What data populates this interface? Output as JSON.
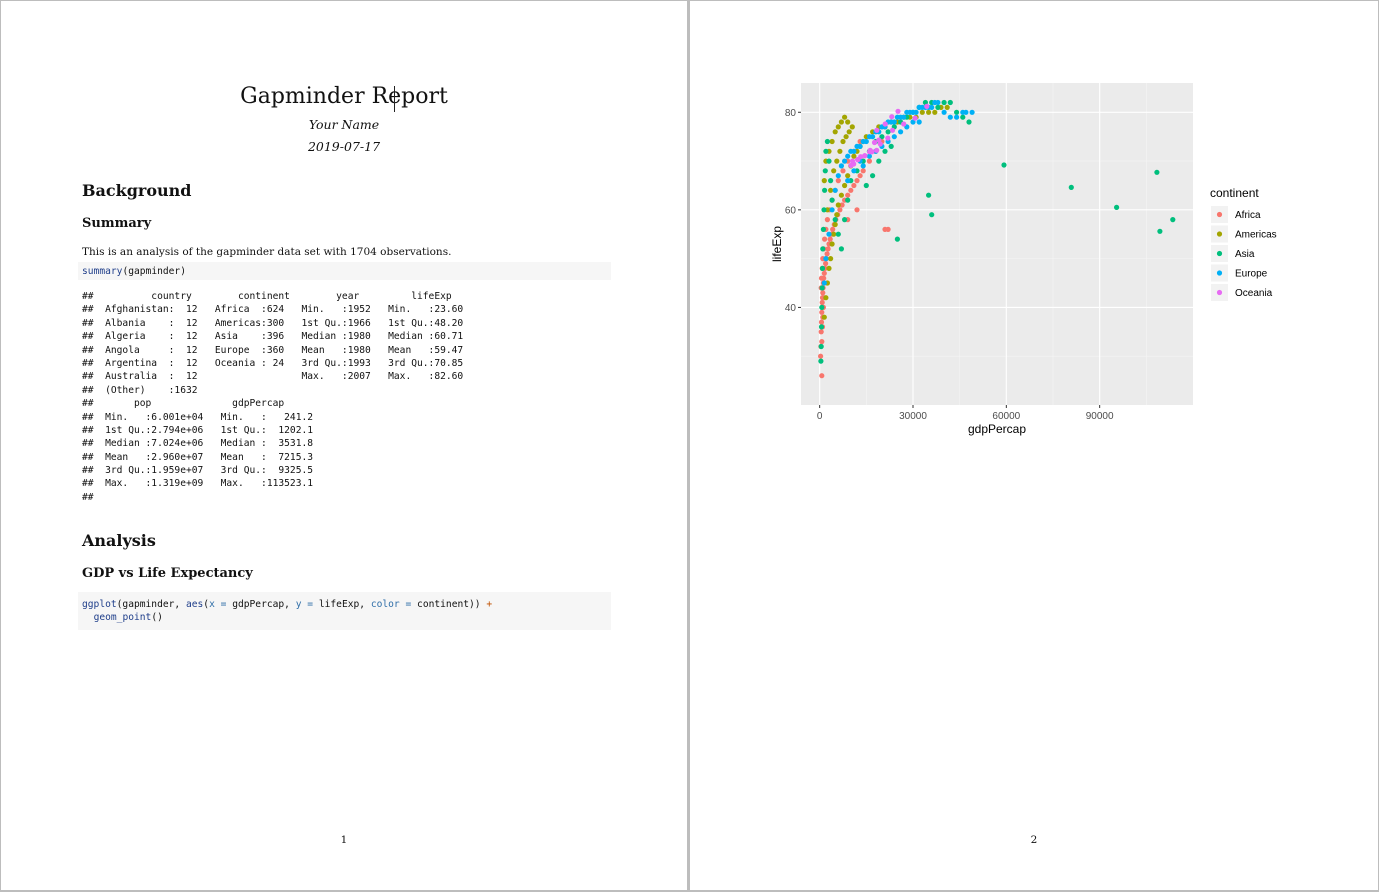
{
  "page1": {
    "title": "Gapminder Report",
    "author": "Your Name",
    "date": "2019-07-17",
    "section_background": "Background",
    "subsection_summary": "Summary",
    "summary_text": "This is an analysis of the gapminder data set with 1704 observations.",
    "code1": {
      "fn": "summary",
      "rest": "(gapminder)"
    },
    "summary_output": [
      "##          country        continent        year         lifeExp",
      "##  Afghanistan:  12   Africa  :624   Min.   :1952   Min.   :23.60",
      "##  Albania    :  12   Americas:300   1st Qu.:1966   1st Qu.:48.20",
      "##  Algeria    :  12   Asia    :396   Median :1980   Median :60.71",
      "##  Angola     :  12   Europe  :360   Mean   :1980   Mean   :59.47",
      "##  Argentina  :  12   Oceania : 24   3rd Qu.:1993   3rd Qu.:70.85",
      "##  Australia  :  12                  Max.   :2007   Max.   :82.60",
      "##  (Other)    :1632",
      "##       pop              gdpPercap",
      "##  Min.   :6.001e+04   Min.   :   241.2",
      "##  1st Qu.:2.794e+06   1st Qu.:  1202.1",
      "##  Median :7.024e+06   Median :  3531.8",
      "##  Mean   :2.960e+07   Mean   :  7215.3",
      "##  3rd Qu.:1.959e+07   3rd Qu.:  9325.5",
      "##  Max.   :1.319e+09   Max.   :113523.1",
      "##"
    ],
    "section_analysis": "Analysis",
    "subsection_gdp": "GDP vs Life Expectancy",
    "code2": {
      "fn1": "ggplot",
      "t1": "(gapminder, ",
      "fn2": "aes",
      "t2": "(",
      "arg1": "x = ",
      "t3": "gdpPercap, ",
      "arg2": "y = ",
      "t4": "lifeExp, ",
      "arg3": "color = ",
      "t5": "continent)) ",
      "plus": "+",
      "fn3": "geom_point",
      "t6": "()"
    },
    "page_number": "1"
  },
  "page2": {
    "page_number": "2"
  },
  "chart_data": {
    "type": "scatter",
    "title": "",
    "xlabel": "gdpPercap",
    "ylabel": "lifeExp",
    "xlim": [
      -6000,
      120000
    ],
    "ylim": [
      20,
      86
    ],
    "xticks": [
      0,
      30000,
      60000,
      90000
    ],
    "xtick_labels": [
      "0",
      "30000",
      "60000",
      "90000"
    ],
    "yticks": [
      40,
      60,
      80
    ],
    "ytick_labels": [
      "40",
      "60",
      "80"
    ],
    "grid": true,
    "legend": {
      "title": "continent",
      "position": "right"
    },
    "series": [
      {
        "name": "Africa",
        "color": "#F8766D",
        "points": [
          [
            300,
            30
          ],
          [
            400,
            32
          ],
          [
            500,
            35
          ],
          [
            600,
            37
          ],
          [
            700,
            39
          ],
          [
            800,
            41
          ],
          [
            900,
            42
          ],
          [
            1000,
            43
          ],
          [
            1100,
            44
          ],
          [
            1200,
            45
          ],
          [
            1300,
            46
          ],
          [
            1500,
            47
          ],
          [
            1700,
            48
          ],
          [
            1900,
            49
          ],
          [
            2100,
            50
          ],
          [
            2400,
            51
          ],
          [
            2700,
            52
          ],
          [
            3000,
            53
          ],
          [
            3400,
            54
          ],
          [
            3800,
            55
          ],
          [
            4200,
            56
          ],
          [
            4700,
            57
          ],
          [
            5200,
            58
          ],
          [
            5800,
            59
          ],
          [
            6500,
            60
          ],
          [
            7200,
            61
          ],
          [
            8000,
            62
          ],
          [
            9000,
            63
          ],
          [
            10000,
            64
          ],
          [
            11000,
            65
          ],
          [
            12000,
            66
          ],
          [
            13000,
            67
          ],
          [
            14000,
            68
          ],
          [
            16000,
            70
          ],
          [
            18000,
            72
          ],
          [
            20000,
            74
          ],
          [
            22000,
            56
          ],
          [
            21000,
            56
          ],
          [
            12000,
            60
          ],
          [
            9000,
            58
          ],
          [
            700,
            33
          ],
          [
            900,
            36
          ],
          [
            1000,
            38
          ],
          [
            1200,
            40
          ],
          [
            1400,
            42
          ],
          [
            500,
            44
          ],
          [
            600,
            46
          ],
          [
            800,
            48
          ],
          [
            1000,
            50
          ],
          [
            1300,
            52
          ],
          [
            1600,
            54
          ],
          [
            2000,
            56
          ],
          [
            2500,
            58
          ],
          [
            3200,
            60
          ],
          [
            4000,
            62
          ],
          [
            5000,
            64
          ],
          [
            6000,
            66
          ],
          [
            7500,
            68
          ],
          [
            9000,
            70
          ],
          [
            11000,
            72
          ],
          [
            13000,
            74
          ],
          [
            700,
            26
          ]
        ]
      },
      {
        "name": "Americas",
        "color": "#A3A500",
        "points": [
          [
            1500,
            38
          ],
          [
            2000,
            42
          ],
          [
            2500,
            45
          ],
          [
            3000,
            48
          ],
          [
            3500,
            50
          ],
          [
            4000,
            53
          ],
          [
            4500,
            55
          ],
          [
            5000,
            57
          ],
          [
            5500,
            59
          ],
          [
            6000,
            61
          ],
          [
            7000,
            63
          ],
          [
            8000,
            65
          ],
          [
            9000,
            67
          ],
          [
            10000,
            69
          ],
          [
            11000,
            71
          ],
          [
            12000,
            72
          ],
          [
            13000,
            73
          ],
          [
            14000,
            74
          ],
          [
            15000,
            75
          ],
          [
            17000,
            76
          ],
          [
            19000,
            77
          ],
          [
            21000,
            77
          ],
          [
            23000,
            78
          ],
          [
            25000,
            78
          ],
          [
            27000,
            79
          ],
          [
            29000,
            79
          ],
          [
            31000,
            79
          ],
          [
            33000,
            80
          ],
          [
            35000,
            80
          ],
          [
            37000,
            80
          ],
          [
            39000,
            81
          ],
          [
            41000,
            81
          ],
          [
            7000,
            78
          ],
          [
            8000,
            79
          ],
          [
            9000,
            78
          ],
          [
            6000,
            77
          ],
          [
            5000,
            76
          ],
          [
            4000,
            74
          ],
          [
            3000,
            72
          ],
          [
            2000,
            70
          ],
          [
            1500,
            66
          ],
          [
            2500,
            60
          ],
          [
            3500,
            64
          ],
          [
            4500,
            68
          ],
          [
            5500,
            70
          ],
          [
            6500,
            72
          ],
          [
            7500,
            74
          ],
          [
            8500,
            75
          ],
          [
            9500,
            76
          ],
          [
            10500,
            77
          ]
        ]
      },
      {
        "name": "Asia",
        "color": "#00BF7D",
        "points": [
          [
            400,
            29
          ],
          [
            500,
            32
          ],
          [
            600,
            36
          ],
          [
            700,
            40
          ],
          [
            800,
            44
          ],
          [
            900,
            48
          ],
          [
            1000,
            52
          ],
          [
            1200,
            56
          ],
          [
            1400,
            60
          ],
          [
            1600,
            64
          ],
          [
            1800,
            68
          ],
          [
            2000,
            72
          ],
          [
            2500,
            74
          ],
          [
            3000,
            70
          ],
          [
            3500,
            66
          ],
          [
            4000,
            62
          ],
          [
            5000,
            58
          ],
          [
            6000,
            55
          ],
          [
            7000,
            52
          ],
          [
            8000,
            58
          ],
          [
            9000,
            62
          ],
          [
            10000,
            66
          ],
          [
            12000,
            68
          ],
          [
            14000,
            70
          ],
          [
            16000,
            72
          ],
          [
            18000,
            74
          ],
          [
            20000,
            75
          ],
          [
            22000,
            76
          ],
          [
            24000,
            77
          ],
          [
            26000,
            78
          ],
          [
            28000,
            79
          ],
          [
            30000,
            80
          ],
          [
            32000,
            81
          ],
          [
            34000,
            82
          ],
          [
            36000,
            82
          ],
          [
            38000,
            81
          ],
          [
            40000,
            82
          ],
          [
            42000,
            82
          ],
          [
            44000,
            80
          ],
          [
            46000,
            79
          ],
          [
            48000,
            78
          ],
          [
            35000,
            63
          ],
          [
            36000,
            59
          ],
          [
            25000,
            54
          ],
          [
            59265,
            69.2
          ],
          [
            80894,
            64.6
          ],
          [
            95458,
            60.5
          ],
          [
            109348,
            55.6
          ],
          [
            108382,
            67.7
          ],
          [
            113523,
            58.0
          ],
          [
            15000,
            65
          ],
          [
            17000,
            67
          ],
          [
            19000,
            70
          ],
          [
            21000,
            72
          ],
          [
            23000,
            73
          ]
        ]
      },
      {
        "name": "Europe",
        "color": "#00B0F6",
        "points": [
          [
            1500,
            45
          ],
          [
            2000,
            50
          ],
          [
            3000,
            55
          ],
          [
            4000,
            60
          ],
          [
            5000,
            64
          ],
          [
            6000,
            67
          ],
          [
            7000,
            69
          ],
          [
            8000,
            70
          ],
          [
            9000,
            71
          ],
          [
            10000,
            72
          ],
          [
            11000,
            72
          ],
          [
            12000,
            73
          ],
          [
            13000,
            73
          ],
          [
            14000,
            74
          ],
          [
            15000,
            74
          ],
          [
            16000,
            75
          ],
          [
            17000,
            75
          ],
          [
            18000,
            76
          ],
          [
            19000,
            76
          ],
          [
            20000,
            77
          ],
          [
            21000,
            77
          ],
          [
            22000,
            78
          ],
          [
            23000,
            78
          ],
          [
            24000,
            78
          ],
          [
            25000,
            79
          ],
          [
            26000,
            79
          ],
          [
            27000,
            79
          ],
          [
            28000,
            80
          ],
          [
            29000,
            80
          ],
          [
            30000,
            80
          ],
          [
            31000,
            80
          ],
          [
            32000,
            81
          ],
          [
            33000,
            81
          ],
          [
            34000,
            81
          ],
          [
            35000,
            81
          ],
          [
            36000,
            81
          ],
          [
            37000,
            82
          ],
          [
            38000,
            82
          ],
          [
            40000,
            80
          ],
          [
            42000,
            79
          ],
          [
            44000,
            79
          ],
          [
            46000,
            80
          ],
          [
            47000,
            80
          ],
          [
            49000,
            80
          ],
          [
            14000,
            69
          ],
          [
            16000,
            71
          ],
          [
            18000,
            72
          ],
          [
            20000,
            73
          ],
          [
            22000,
            74
          ],
          [
            24000,
            75
          ],
          [
            26000,
            76
          ],
          [
            28000,
            77
          ],
          [
            30000,
            78
          ],
          [
            32000,
            78
          ],
          [
            9000,
            66
          ],
          [
            11000,
            68
          ],
          [
            13000,
            70
          ]
        ]
      },
      {
        "name": "Oceania",
        "color": "#E76BF3",
        "points": [
          [
            10040,
            69.1
          ],
          [
            10950,
            69.4
          ],
          [
            12217,
            70.3
          ],
          [
            14526,
            71.1
          ],
          [
            16789,
            71.9
          ],
          [
            18334,
            72.2
          ],
          [
            19477,
            73.5
          ],
          [
            21889,
            74.7
          ],
          [
            23424,
            76.3
          ],
          [
            26997,
            77.6
          ],
          [
            30688,
            78.8
          ],
          [
            34435,
            81.2
          ],
          [
            10557,
            70.0
          ],
          [
            12247,
            70.3
          ],
          [
            13175,
            70.9
          ],
          [
            14463,
            71.1
          ],
          [
            16046,
            71.9
          ],
          [
            16233,
            72.2
          ],
          [
            17632,
            73.8
          ],
          [
            19007,
            74.3
          ],
          [
            18363,
            76.3
          ],
          [
            21050,
            77.6
          ],
          [
            23189,
            79.1
          ],
          [
            25185,
            80.2
          ]
        ]
      }
    ]
  }
}
